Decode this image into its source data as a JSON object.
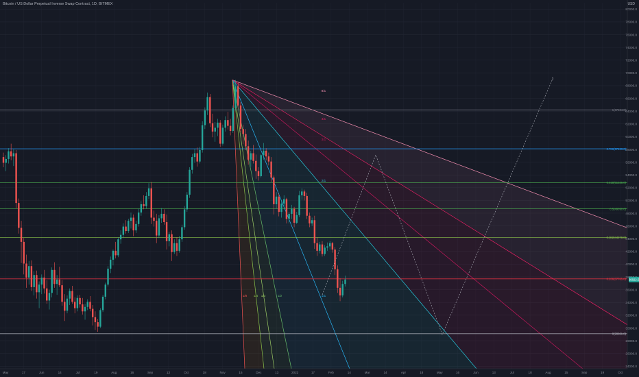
{
  "header": {
    "title": "Bitcoin / US Dollar Perpetual Inverse Swap Contract, 1D, BITMEX",
    "currency": "USD"
  },
  "colors": {
    "background": "#161a25",
    "up": "#26a69a",
    "down": "#ef5350",
    "grid": "#222633",
    "axis_text": "#8a8e99",
    "price_badge": "#26a69a"
  },
  "chart_data": {
    "type": "candlestick",
    "x_ticks": [
      "May",
      "17",
      "Jun",
      "14",
      "Jul",
      "19",
      "Aug",
      "16",
      "Sep",
      "13",
      "Oct",
      "18",
      "Nov",
      "15",
      "Dec",
      "13",
      "2022",
      "17",
      "Feb",
      "14",
      "Mar",
      "14",
      "Apr",
      "18",
      "May",
      "16",
      "Jun",
      "13",
      "Jul",
      "18",
      "Aug",
      "15",
      "Sep",
      "19",
      "Oct"
    ],
    "y_ticks": [
      "80000.0",
      "78000.0",
      "76000.0",
      "74000.0",
      "72000.0",
      "70000.0",
      "68000.0",
      "66000.0",
      "64000.0",
      "62000.0",
      "60000.0",
      "58000.0",
      "56000.0",
      "54000.0",
      "52000.0",
      "50000.0",
      "48000.0",
      "46000.0",
      "44000.0",
      "42000.0",
      "40000.0",
      "38000.0",
      "36000.0",
      "34000.0",
      "32000.0",
      "30000.0",
      "28000.0",
      "26000.0",
      "24000.0"
    ],
    "ylim": [
      23600,
      81000
    ],
    "fib_levels": [
      {
        "label": "1(67404.0)",
        "price": 64200,
        "color": "#787b86"
      },
      {
        "label": "0.786(57233.0)",
        "price": 58100,
        "color": "#2196f3"
      },
      {
        "label": "0.618(51526.0)",
        "price": 52800,
        "color": "#4caf50"
      },
      {
        "label": "0.5(49090.0)",
        "price": 48700,
        "color": "#4caf50"
      },
      {
        "label": "0.382(44278.0)",
        "price": 44200,
        "color": "#8bc34a"
      },
      {
        "label": "0.236(37765.0)",
        "price": 37700,
        "color": "#f23645"
      },
      {
        "label": "0(28861.0)",
        "price": 29100,
        "color": "#b2b5be"
      }
    ],
    "current_price_label": "36822.5",
    "fan_labels": [
      "8/1",
      "4/1",
      "3/1",
      "2/1",
      "1/1",
      "1/2",
      "1/3",
      "1/4",
      "1/8"
    ],
    "candles": [
      [
        56800,
        57500,
        55200,
        55900
      ],
      [
        55900,
        57100,
        54600,
        56500
      ],
      [
        56500,
        58200,
        55800,
        57700
      ],
      [
        57700,
        58900,
        56300,
        56900
      ],
      [
        56900,
        58000,
        55400,
        57400
      ],
      [
        57400,
        57900,
        48800,
        49600
      ],
      [
        49600,
        50300,
        44800,
        45700
      ],
      [
        45700,
        46800,
        40200,
        43500
      ],
      [
        43500,
        44100,
        38400,
        40100
      ],
      [
        40100,
        41500,
        36300,
        37900
      ],
      [
        37900,
        40500,
        36800,
        39700
      ],
      [
        39700,
        40600,
        35800,
        36400
      ],
      [
        36400,
        38900,
        35100,
        38300
      ],
      [
        38300,
        39000,
        34600,
        35600
      ],
      [
        35600,
        37300,
        33100,
        36800
      ],
      [
        36800,
        38400,
        35300,
        37900
      ],
      [
        37900,
        39100,
        35400,
        36200
      ],
      [
        36200,
        37500,
        33800,
        34300
      ],
      [
        34300,
        36000,
        32900,
        35500
      ],
      [
        35500,
        39500,
        34800,
        39100
      ],
      [
        39100,
        40300,
        36300,
        36900
      ],
      [
        36900,
        38300,
        35200,
        37600
      ],
      [
        37600,
        39600,
        36400,
        36700
      ],
      [
        36700,
        37500,
        33500,
        34100
      ],
      [
        34100,
        35300,
        31100,
        32700
      ],
      [
        32700,
        35100,
        32300,
        34600
      ],
      [
        34600,
        36200,
        33600,
        35800
      ],
      [
        35800,
        36600,
        33800,
        34100
      ],
      [
        34100,
        34800,
        32300,
        33100
      ],
      [
        33100,
        35100,
        32600,
        34700
      ],
      [
        34700,
        35200,
        33200,
        33700
      ],
      [
        33700,
        34700,
        32100,
        32600
      ],
      [
        32600,
        33800,
        31300,
        33300
      ],
      [
        33300,
        34500,
        32800,
        34100
      ],
      [
        34100,
        35000,
        32600,
        33000
      ],
      [
        33000,
        33600,
        30400,
        31700
      ],
      [
        31700,
        32600,
        29700,
        30900
      ],
      [
        30900,
        31400,
        29400,
        30200
      ],
      [
        30200,
        33100,
        30000,
        32800
      ],
      [
        32800,
        35200,
        32500,
        34900
      ],
      [
        34900,
        37100,
        34500,
        36800
      ],
      [
        36800,
        39700,
        36500,
        39300
      ],
      [
        39300,
        41200,
        38600,
        40700
      ],
      [
        40700,
        42300,
        39800,
        42100
      ],
      [
        42100,
        43500,
        40900,
        41400
      ],
      [
        41400,
        44200,
        41100,
        43900
      ],
      [
        43900,
        45300,
        43200,
        44600
      ],
      [
        44600,
        46400,
        44100,
        45900
      ],
      [
        45900,
        46900,
        44800,
        45200
      ],
      [
        45200,
        47100,
        44900,
        46800
      ],
      [
        46800,
        48100,
        45600,
        47300
      ],
      [
        47300,
        47800,
        44400,
        45300
      ],
      [
        45300,
        46800,
        44900,
        46300
      ],
      [
        46300,
        48700,
        45900,
        48100
      ],
      [
        48100,
        49900,
        47600,
        49400
      ],
      [
        49400,
        50800,
        48600,
        49100
      ],
      [
        49100,
        51300,
        48700,
        50700
      ],
      [
        50700,
        52700,
        50200,
        51900
      ],
      [
        51900,
        52900,
        46300,
        47300
      ],
      [
        47300,
        48400,
        45900,
        46800
      ],
      [
        46800,
        47900,
        43300,
        44500
      ],
      [
        44500,
        47700,
        44100,
        47200
      ],
      [
        47200,
        48800,
        46500,
        47900
      ],
      [
        47900,
        48600,
        46200,
        46600
      ],
      [
        46600,
        47800,
        42300,
        43600
      ],
      [
        43600,
        45100,
        42800,
        44700
      ],
      [
        44700,
        45300,
        40500,
        41900
      ],
      [
        41900,
        43900,
        41600,
        43300
      ],
      [
        43300,
        44200,
        41300,
        42100
      ],
      [
        42100,
        44400,
        41800,
        43900
      ],
      [
        43900,
        46200,
        43500,
        45800
      ],
      [
        45800,
        49100,
        45400,
        48600
      ],
      [
        48600,
        51300,
        48200,
        50900
      ],
      [
        50900,
        55200,
        50400,
        54800
      ],
      [
        54800,
        57300,
        54200,
        56800
      ],
      [
        56800,
        58100,
        55900,
        57400
      ],
      [
        57400,
        58300,
        55300,
        56100
      ],
      [
        56100,
        58400,
        55800,
        57900
      ],
      [
        57900,
        62400,
        57500,
        61800
      ],
      [
        61800,
        64600,
        61200,
        64100
      ],
      [
        64100,
        66900,
        63400,
        66200
      ],
      [
        66200,
        66700,
        61500,
        62100
      ],
      [
        62100,
        63600,
        59900,
        60800
      ],
      [
        60800,
        62300,
        59200,
        61400
      ],
      [
        61400,
        62800,
        60100,
        62200
      ],
      [
        62200,
        62600,
        58400,
        58900
      ],
      [
        58900,
        61900,
        58600,
        61400
      ],
      [
        61400,
        63200,
        60800,
        62600
      ],
      [
        62600,
        63900,
        61100,
        61700
      ],
      [
        61700,
        62800,
        60200,
        60900
      ],
      [
        60900,
        64900,
        60600,
        64500
      ],
      [
        64500,
        68900,
        64100,
        67900
      ],
      [
        67900,
        68600,
        64400,
        64900
      ],
      [
        64900,
        65400,
        60700,
        61200
      ],
      [
        61200,
        61900,
        58800,
        60400
      ],
      [
        60400,
        61200,
        57900,
        58500
      ],
      [
        58500,
        59400,
        55600,
        56400
      ],
      [
        56400,
        57800,
        55300,
        57400
      ],
      [
        57400,
        58700,
        55800,
        56200
      ],
      [
        56200,
        57200,
        53400,
        54600
      ],
      [
        54600,
        55200,
        53100,
        53800
      ],
      [
        53800,
        57300,
        53600,
        57100
      ],
      [
        57100,
        59000,
        56400,
        57800
      ],
      [
        57800,
        58200,
        56300,
        56900
      ],
      [
        56900,
        57500,
        55500,
        56100
      ],
      [
        56100,
        56800,
        52900,
        53600
      ],
      [
        53600,
        53900,
        47800,
        49400
      ],
      [
        49400,
        51300,
        48700,
        50600
      ],
      [
        50600,
        51100,
        47500,
        48200
      ],
      [
        48200,
        50100,
        47300,
        49500
      ],
      [
        49500,
        50800,
        48700,
        50200
      ],
      [
        50200,
        50400,
        46400,
        47100
      ],
      [
        47100,
        48200,
        46400,
        47900
      ],
      [
        47900,
        49300,
        47100,
        48700
      ],
      [
        48700,
        49000,
        45800,
        46500
      ],
      [
        46500,
        48200,
        46300,
        47700
      ],
      [
        47700,
        51500,
        47400,
        50800
      ],
      [
        50800,
        51900,
        50100,
        51400
      ],
      [
        51400,
        51700,
        50000,
        50700
      ],
      [
        50700,
        51200,
        47100,
        47600
      ],
      [
        47600,
        48100,
        45800,
        46400
      ],
      [
        46400,
        47300,
        46000,
        46900
      ],
      [
        46900,
        47600,
        42400,
        43300
      ],
      [
        43300,
        44200,
        41300,
        42100
      ],
      [
        42100,
        43500,
        41700,
        43100
      ],
      [
        43100,
        43600,
        41200,
        41600
      ],
      [
        41600,
        43000,
        41300,
        42600
      ],
      [
        42600,
        43400,
        42100,
        42800
      ],
      [
        42800,
        43600,
        42300,
        43300
      ],
      [
        43300,
        43500,
        41800,
        42300
      ],
      [
        42300,
        42700,
        38300,
        39200
      ],
      [
        39200,
        39800,
        35500,
        36300
      ],
      [
        36300,
        37800,
        34200,
        35100
      ],
      [
        35100,
        37400,
        34800,
        36900
      ],
      [
        36900,
        38200,
        36500,
        37600
      ]
    ]
  }
}
